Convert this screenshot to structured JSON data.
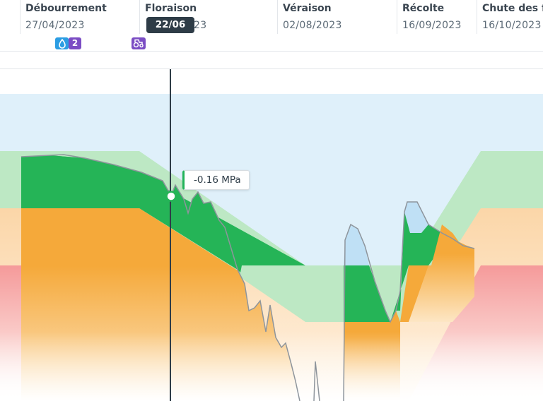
{
  "phases": [
    {
      "name": "Débourrement",
      "date": "27/04/2023"
    },
    {
      "name": "Floraison",
      "date": "xx/xx/2023"
    },
    {
      "name": "Véraison",
      "date": "02/08/2023"
    },
    {
      "name": "Récolte",
      "date": "16/09/2023"
    },
    {
      "name": "Chute des feuilles",
      "date": "16/10/2023"
    }
  ],
  "events": {
    "irrigation_icon": "water-drop-icon",
    "irrigation_count": "2",
    "treatment_icon": "tractor-icon"
  },
  "cursor": {
    "date": "22/06",
    "value": "-0.16 MPa"
  },
  "chart_data": {
    "type": "area",
    "title": "",
    "xlabel": "",
    "ylabel": "",
    "zones": [
      {
        "name": "sky",
        "color": "#dff0fa"
      },
      {
        "name": "green",
        "color": "#bde8c4"
      },
      {
        "name": "orange",
        "color": "#fbd6a8"
      },
      {
        "name": "red",
        "color": "#f6a6a6"
      }
    ],
    "series_color": "#8e959c",
    "cursor_color": "#2e3c47",
    "fill_colors": {
      "green": "#25b457",
      "orange": "#f5a93a",
      "blue": "#bfe0f5"
    }
  }
}
